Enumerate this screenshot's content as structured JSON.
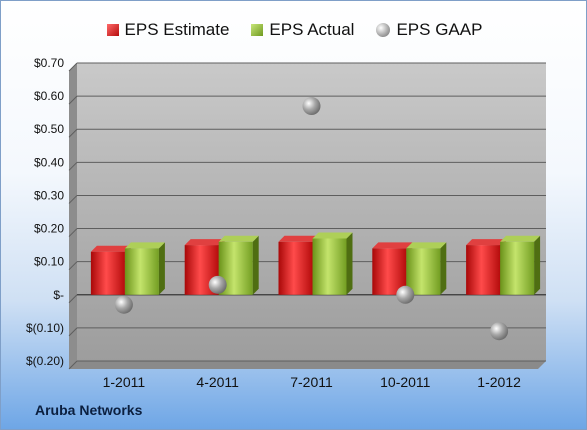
{
  "chart_data": {
    "type": "bar",
    "categories": [
      "1-2011",
      "4-2011",
      "7-2011",
      "10-2011",
      "1-2012"
    ],
    "series": [
      {
        "name": "EPS Estimate",
        "kind": "bar",
        "color": "#c8191a",
        "values": [
          0.13,
          0.15,
          0.16,
          0.14,
          0.15
        ]
      },
      {
        "name": "EPS Actual",
        "kind": "bar",
        "color": "#8fb83a",
        "values": [
          0.14,
          0.16,
          0.17,
          0.14,
          0.16
        ]
      },
      {
        "name": "EPS GAAP",
        "kind": "scatter",
        "color": "#9e9e9e",
        "values": [
          -0.03,
          0.03,
          0.57,
          0.0,
          -0.11
        ]
      }
    ],
    "yticks": [
      "$(0.20)",
      "$(0.10)",
      "$-",
      "$0.10",
      "$0.20",
      "$0.30",
      "$0.40",
      "$0.50",
      "$0.60",
      "$0.70"
    ],
    "ytick_values": [
      -0.2,
      -0.1,
      0,
      0.1,
      0.2,
      0.3,
      0.4,
      0.5,
      0.6,
      0.7
    ],
    "ylim": [
      -0.2,
      0.7
    ],
    "grid": true,
    "legend_position": "top"
  },
  "legend": {
    "estimate": "EPS Estimate",
    "actual": "EPS Actual",
    "gaap": "EPS GAAP"
  },
  "footer": {
    "company": "Aruba Networks"
  }
}
